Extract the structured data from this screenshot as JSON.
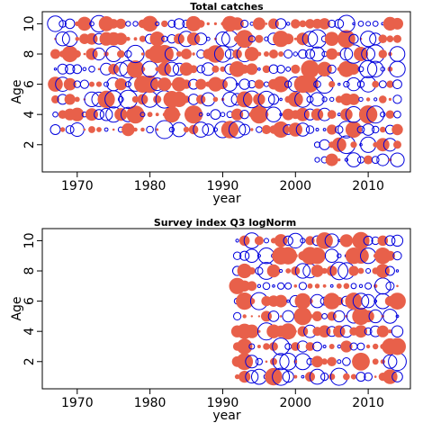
{
  "colors": {
    "positive": "#e8604a",
    "negative": "#0000dd",
    "frame": "#000000"
  },
  "chart_data": [
    {
      "type": "bubble",
      "title": "Total catches",
      "xlabel": "year",
      "ylabel": "Age",
      "xlim": [
        1965.2,
        2015.8
      ],
      "ylim": [
        0.2,
        10.8
      ],
      "xticks": [
        1970,
        1980,
        1990,
        2000,
        2010
      ],
      "yticks": [
        2,
        4,
        6,
        8,
        10
      ],
      "legend": "none",
      "grid": false,
      "x_range": [
        1967,
        2014
      ],
      "ages": [
        1,
        2,
        3,
        4,
        5,
        6,
        7,
        8,
        9,
        10
      ],
      "age_first_year": {
        "1": 2003,
        "2": 2003
      },
      "residual_pattern_seed": 11
    },
    {
      "type": "bubble",
      "title": "Survey index Q3 logNorm",
      "xlabel": "year",
      "ylabel": "Age",
      "xlim": [
        1965.2,
        2015.8
      ],
      "ylim": [
        0.2,
        10.8
      ],
      "xticks": [
        1970,
        1980,
        1990,
        2000,
        2010
      ],
      "yticks": [
        2,
        4,
        6,
        8,
        10
      ],
      "legend": "none",
      "grid": false,
      "x_range": [
        1992,
        2014
      ],
      "ages": [
        1,
        2,
        3,
        4,
        5,
        6,
        7,
        8,
        9,
        10
      ],
      "age_first_year": {},
      "residual_pattern_seed": 29
    }
  ]
}
